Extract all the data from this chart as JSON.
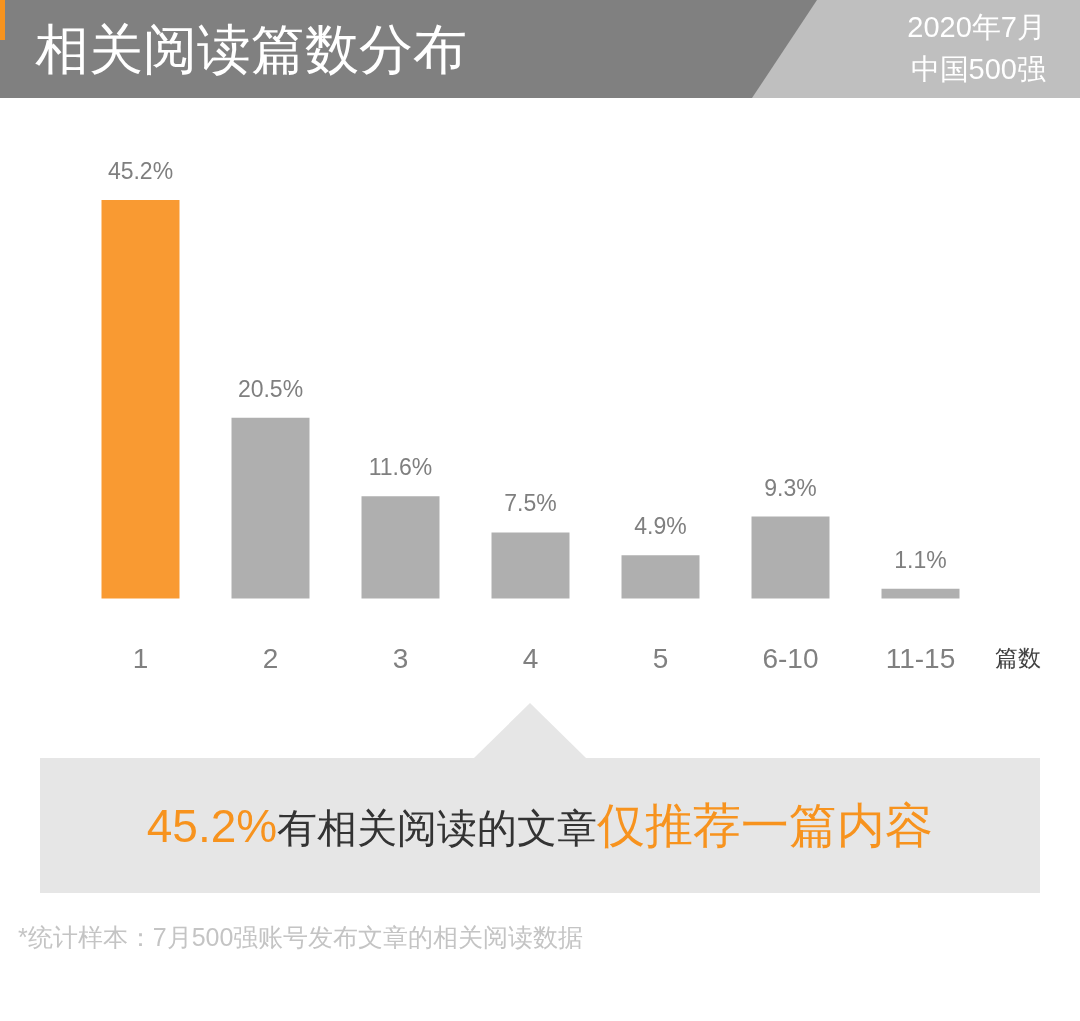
{
  "chart_data": {
    "type": "bar",
    "title": "相关阅读篇数分布",
    "subtitle": "2020年7月中国500强",
    "xlabel": "篇数",
    "categories": [
      "1",
      "2",
      "3",
      "4",
      "5",
      "6-10",
      "11-15"
    ],
    "values": [
      45.2,
      20.5,
      11.6,
      7.5,
      4.9,
      9.3,
      1.1
    ],
    "colors": [
      "#f99a32",
      "#afafaf",
      "#afafaf",
      "#afafaf",
      "#afafaf",
      "#afafaf",
      "#afafaf"
    ],
    "value_labels": [
      "45.2%",
      "20.5%",
      "11.6%",
      "7.5%",
      "4.9%",
      "9.3%",
      "1.1%"
    ],
    "tick_labels": "x",
    "annotations": [
      "45.2%",
      "有相关阅读的文章",
      "仅推荐一篇内容",
      "*统计样本：7月500强账号发布文章的相关阅读数据"
    ]
  }
}
